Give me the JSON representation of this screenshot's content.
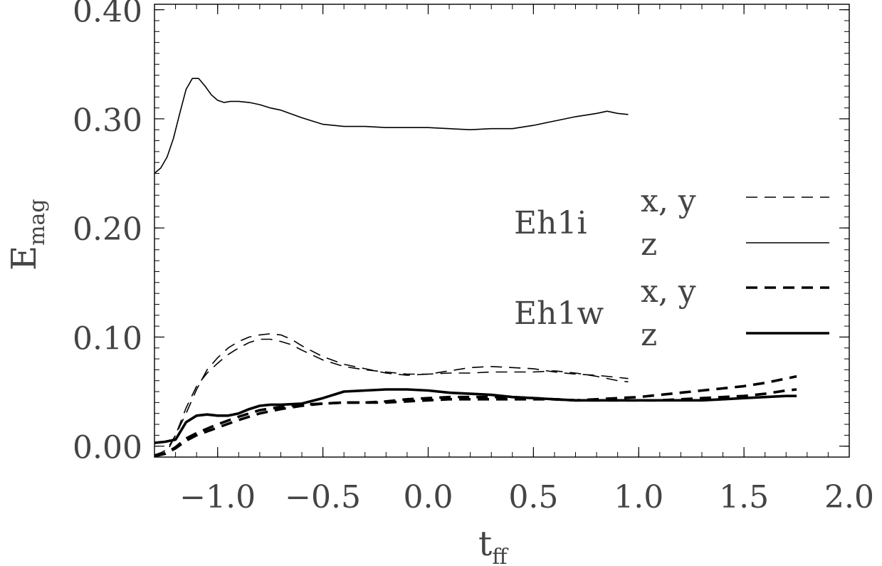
{
  "chart_data": {
    "type": "line",
    "xlabel_main": "t",
    "xlabel_sub": "ff",
    "ylabel_main": "E",
    "ylabel_sub": "mag",
    "xlim": [
      -1.3,
      2.0
    ],
    "ylim": [
      -0.01,
      0.405
    ],
    "xticks": [
      -1.0,
      -0.5,
      0.0,
      0.5,
      1.0,
      1.5,
      2.0
    ],
    "xtick_labels": [
      "−1.0",
      "−0.5",
      "0.0",
      "0.5",
      "1.0",
      "1.5",
      "2.0"
    ],
    "yticks": [
      0.0,
      0.1,
      0.2,
      0.3,
      0.4
    ],
    "ytick_labels": [
      "0.00",
      "0.10",
      "0.20",
      "0.30",
      "0.40"
    ],
    "grid": false,
    "legend_position": "right",
    "legend": {
      "groups": [
        {
          "name": "Eh1i",
          "entries": [
            {
              "label": "x, y",
              "style": "dashed",
              "width": "thin"
            },
            {
              "label": "z",
              "style": "solid",
              "width": "thin"
            }
          ]
        },
        {
          "name": "Eh1w",
          "entries": [
            {
              "label": "x, y",
              "style": "dashed",
              "width": "thick"
            },
            {
              "label": "z",
              "style": "solid",
              "width": "thick"
            }
          ]
        }
      ]
    },
    "series": [
      {
        "group": "Eh1i",
        "component": "z",
        "style": "solid",
        "width": "thin",
        "x": [
          -1.3,
          -1.27,
          -1.24,
          -1.21,
          -1.18,
          -1.15,
          -1.12,
          -1.09,
          -1.06,
          -1.03,
          -1.0,
          -0.97,
          -0.94,
          -0.9,
          -0.85,
          -0.8,
          -0.75,
          -0.7,
          -0.6,
          -0.5,
          -0.4,
          -0.3,
          -0.2,
          -0.1,
          0.0,
          0.1,
          0.2,
          0.3,
          0.4,
          0.5,
          0.6,
          0.7,
          0.8,
          0.85,
          0.9,
          0.95
        ],
        "y": [
          0.25,
          0.255,
          0.265,
          0.282,
          0.305,
          0.327,
          0.337,
          0.337,
          0.33,
          0.322,
          0.317,
          0.315,
          0.316,
          0.316,
          0.315,
          0.313,
          0.31,
          0.308,
          0.301,
          0.295,
          0.293,
          0.293,
          0.292,
          0.292,
          0.292,
          0.291,
          0.29,
          0.291,
          0.291,
          0.294,
          0.298,
          0.302,
          0.305,
          0.307,
          0.305,
          0.304
        ]
      },
      {
        "group": "Eh1i",
        "component": "x",
        "style": "dashed",
        "width": "thin",
        "x": [
          -1.3,
          -1.27,
          -1.24,
          -1.2,
          -1.15,
          -1.1,
          -1.05,
          -1.0,
          -0.95,
          -0.9,
          -0.85,
          -0.8,
          -0.75,
          -0.7,
          -0.65,
          -0.6,
          -0.5,
          -0.4,
          -0.3,
          -0.2,
          -0.1,
          0.0,
          0.1,
          0.2,
          0.3,
          0.4,
          0.5,
          0.6,
          0.7,
          0.8,
          0.9,
          0.95
        ],
        "y": [
          -0.008,
          -0.006,
          -0.003,
          0.01,
          0.03,
          0.052,
          0.07,
          0.081,
          0.09,
          0.096,
          0.1,
          0.102,
          0.103,
          0.102,
          0.098,
          0.092,
          0.082,
          0.075,
          0.071,
          0.067,
          0.065,
          0.066,
          0.069,
          0.072,
          0.073,
          0.072,
          0.071,
          0.068,
          0.066,
          0.065,
          0.063,
          0.062
        ]
      },
      {
        "group": "Eh1i",
        "component": "y",
        "style": "dashed",
        "width": "thin",
        "x": [
          -1.3,
          -1.27,
          -1.24,
          -1.2,
          -1.15,
          -1.1,
          -1.05,
          -1.0,
          -0.95,
          -0.9,
          -0.85,
          -0.8,
          -0.75,
          -0.7,
          -0.65,
          -0.6,
          -0.5,
          -0.4,
          -0.3,
          -0.2,
          -0.1,
          0.0,
          0.1,
          0.2,
          0.3,
          0.4,
          0.5,
          0.6,
          0.7,
          0.8,
          0.9,
          0.95
        ],
        "y": [
          -0.009,
          -0.007,
          -0.005,
          0.01,
          0.035,
          0.055,
          0.067,
          0.076,
          0.084,
          0.09,
          0.095,
          0.098,
          0.098,
          0.096,
          0.093,
          0.088,
          0.079,
          0.073,
          0.07,
          0.068,
          0.066,
          0.066,
          0.067,
          0.067,
          0.068,
          0.068,
          0.068,
          0.069,
          0.067,
          0.064,
          0.06,
          0.059
        ]
      },
      {
        "group": "Eh1w",
        "component": "z",
        "style": "solid",
        "width": "thick",
        "x": [
          -1.3,
          -1.25,
          -1.2,
          -1.15,
          -1.1,
          -1.05,
          -1.0,
          -0.95,
          -0.9,
          -0.85,
          -0.8,
          -0.75,
          -0.7,
          -0.6,
          -0.5,
          -0.4,
          -0.3,
          -0.2,
          -0.1,
          0.0,
          0.1,
          0.2,
          0.3,
          0.4,
          0.5,
          0.6,
          0.7,
          0.8,
          0.9,
          1.0,
          1.1,
          1.2,
          1.3,
          1.4,
          1.5,
          1.6,
          1.7,
          1.75
        ],
        "y": [
          0.003,
          0.004,
          0.006,
          0.022,
          0.028,
          0.029,
          0.028,
          0.028,
          0.03,
          0.034,
          0.037,
          0.038,
          0.038,
          0.039,
          0.044,
          0.05,
          0.051,
          0.052,
          0.052,
          0.051,
          0.049,
          0.048,
          0.047,
          0.045,
          0.044,
          0.043,
          0.042,
          0.042,
          0.042,
          0.042,
          0.042,
          0.042,
          0.042,
          0.043,
          0.044,
          0.045,
          0.046,
          0.046
        ]
      },
      {
        "group": "Eh1w",
        "component": "x",
        "style": "dashed",
        "width": "thick",
        "x": [
          -1.3,
          -1.25,
          -1.2,
          -1.15,
          -1.1,
          -1.0,
          -0.9,
          -0.8,
          -0.7,
          -0.6,
          -0.5,
          -0.4,
          -0.3,
          -0.2,
          -0.1,
          0.0,
          0.1,
          0.2,
          0.3,
          0.4,
          0.5,
          0.6,
          0.7,
          0.8,
          0.9,
          1.0,
          1.1,
          1.2,
          1.3,
          1.4,
          1.5,
          1.6,
          1.7,
          1.75
        ],
        "y": [
          -0.009,
          -0.007,
          -0.001,
          0.007,
          0.012,
          0.02,
          0.027,
          0.033,
          0.036,
          0.038,
          0.039,
          0.04,
          0.04,
          0.041,
          0.043,
          0.044,
          0.045,
          0.045,
          0.045,
          0.045,
          0.044,
          0.043,
          0.042,
          0.043,
          0.044,
          0.045,
          0.047,
          0.049,
          0.051,
          0.053,
          0.055,
          0.058,
          0.062,
          0.064
        ]
      },
      {
        "group": "Eh1w",
        "component": "y",
        "style": "dashed",
        "width": "thick",
        "x": [
          -1.3,
          -1.25,
          -1.2,
          -1.15,
          -1.1,
          -1.0,
          -0.9,
          -0.8,
          -0.7,
          -0.6,
          -0.5,
          -0.4,
          -0.3,
          -0.2,
          -0.1,
          0.0,
          0.1,
          0.2,
          0.3,
          0.4,
          0.5,
          0.6,
          0.7,
          0.8,
          0.9,
          1.0,
          1.1,
          1.2,
          1.3,
          1.4,
          1.5,
          1.6,
          1.7,
          1.75
        ],
        "y": [
          -0.009,
          -0.007,
          -0.002,
          0.005,
          0.01,
          0.017,
          0.024,
          0.03,
          0.034,
          0.037,
          0.039,
          0.04,
          0.04,
          0.04,
          0.041,
          0.042,
          0.043,
          0.043,
          0.043,
          0.043,
          0.043,
          0.043,
          0.042,
          0.042,
          0.042,
          0.042,
          0.042,
          0.043,
          0.044,
          0.045,
          0.046,
          0.048,
          0.051,
          0.052
        ]
      }
    ]
  }
}
